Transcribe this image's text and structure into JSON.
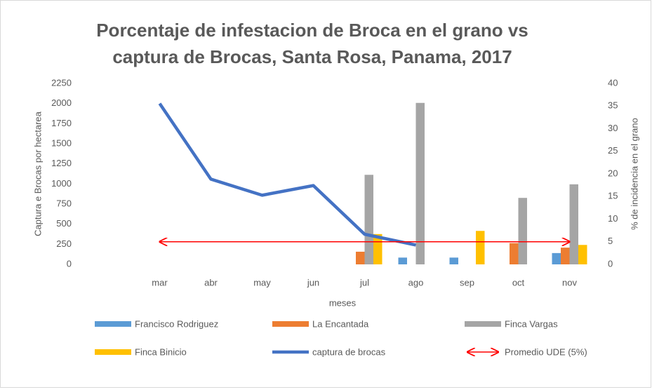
{
  "chart_data": {
    "type": "bar",
    "title": [
      "Porcentaje de infestacion de Broca en el grano vs",
      "captura de Brocas, Santa Rosa, Panama, 2017"
    ],
    "x_label": "meses",
    "y_label": "Captura e Brocas por hectarea",
    "y2_label": "% de incidencia  en el grano",
    "categories": [
      null,
      "mar",
      "abr",
      "may",
      "jun",
      "jul",
      "ago",
      "sep",
      "oct",
      "nov"
    ],
    "ylim": [
      0,
      2250
    ],
    "yticks": [
      0,
      250,
      500,
      750,
      1000,
      1250,
      1500,
      1750,
      2000,
      2250
    ],
    "y2lim": [
      0,
      40
    ],
    "y2ticks": [
      0,
      5,
      10,
      15,
      20,
      25,
      30,
      35,
      40
    ],
    "series": [
      {
        "name": "Francisco Rodriguez",
        "type": "bar",
        "axis": "y2",
        "color": "#5b9bd5",
        "values": [
          null,
          null,
          null,
          null,
          null,
          null,
          1.5,
          1.5,
          null,
          2.5
        ]
      },
      {
        "name": "La Encantada",
        "type": "bar",
        "axis": "y2",
        "color": "#ed7d31",
        "values": [
          null,
          null,
          null,
          null,
          null,
          2.8,
          null,
          null,
          4.7,
          3.7
        ]
      },
      {
        "name": "Finca Vargas",
        "type": "bar",
        "axis": "y2",
        "color": "#a5a5a5",
        "values": [
          null,
          null,
          null,
          null,
          null,
          19.8,
          35.7,
          null,
          14.7,
          17.7
        ]
      },
      {
        "name": "Finca Binicio",
        "type": "bar",
        "axis": "y2",
        "color": "#ffc000",
        "values": [
          null,
          null,
          null,
          null,
          null,
          6.7,
          null,
          7.4,
          null,
          4.3
        ]
      },
      {
        "name": "captura de brocas",
        "type": "line",
        "axis": "y",
        "color": "#4472c4",
        "values": [
          null,
          2000,
          1060,
          860,
          980,
          375,
          240,
          null,
          null,
          null
        ]
      },
      {
        "name": "Promedio UDE (5%)",
        "type": "arrow",
        "axis": "y2",
        "color": "#ff0000",
        "values": [
          null,
          5,
          5,
          5,
          5,
          5,
          5,
          5,
          5,
          5
        ]
      }
    ]
  }
}
